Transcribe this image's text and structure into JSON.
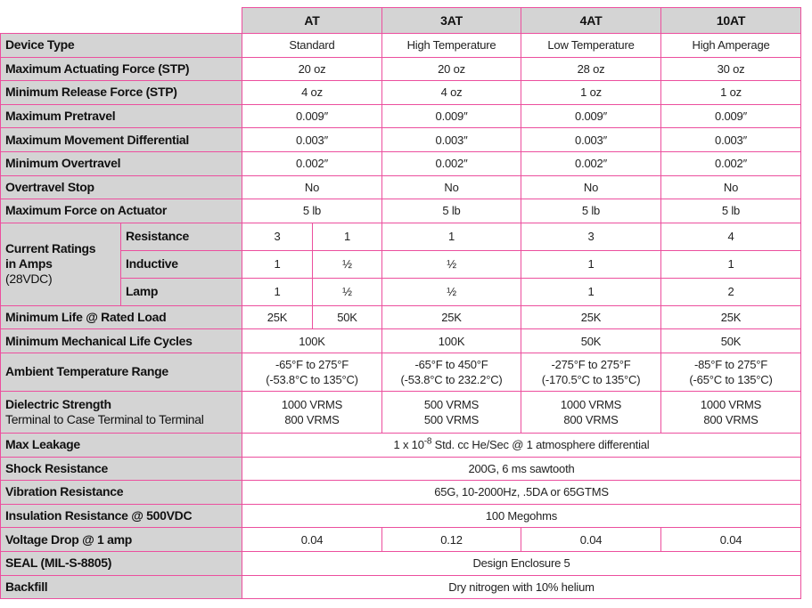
{
  "columns": [
    "AT",
    "3AT",
    "4AT",
    "10AT"
  ],
  "colors": {
    "border": "#ec4f9e",
    "label_bg": "#d4d4d4"
  },
  "rows": [
    {
      "label": "Device Type",
      "cells": [
        {
          "t": "Standard",
          "s": 2
        },
        {
          "t": "High Temperature"
        },
        {
          "t": "Low Temperature"
        },
        {
          "t": "High Amperage"
        }
      ]
    },
    {
      "label": "Maximum Actuating Force (STP)",
      "cells": [
        {
          "t": "20 oz",
          "s": 2
        },
        {
          "t": "20 oz"
        },
        {
          "t": "28 oz"
        },
        {
          "t": "30 oz"
        }
      ]
    },
    {
      "label": "Minimum Release Force (STP)",
      "cells": [
        {
          "t": "4 oz",
          "s": 2
        },
        {
          "t": "4 oz"
        },
        {
          "t": "1 oz"
        },
        {
          "t": "1 oz"
        }
      ]
    },
    {
      "label": "Maximum Pretravel",
      "cells": [
        {
          "t": "0.009″",
          "s": 2
        },
        {
          "t": "0.009″"
        },
        {
          "t": "0.009″"
        },
        {
          "t": "0.009″"
        }
      ]
    },
    {
      "label": "Maximum Movement Differential",
      "cells": [
        {
          "t": "0.003″",
          "s": 2
        },
        {
          "t": "0.003″"
        },
        {
          "t": "0.003″"
        },
        {
          "t": "0.003″"
        }
      ]
    },
    {
      "label": "Minimum Overtravel",
      "cells": [
        {
          "t": "0.002″",
          "s": 2
        },
        {
          "t": "0.002″"
        },
        {
          "t": "0.002″"
        },
        {
          "t": "0.002″"
        }
      ]
    },
    {
      "label": "Overtravel Stop",
      "cells": [
        {
          "t": "No",
          "s": 2
        },
        {
          "t": "No"
        },
        {
          "t": "No"
        },
        {
          "t": "No"
        }
      ]
    },
    {
      "label": "Maximum Force on Actuator",
      "cells": [
        {
          "t": "5 lb",
          "s": 2
        },
        {
          "t": "5 lb"
        },
        {
          "t": "5 lb"
        },
        {
          "t": "5 lb"
        }
      ]
    }
  ],
  "current_ratings": {
    "label": "Current Ratings",
    "label2": "in Amps",
    "note": "(28VDC)",
    "rows": [
      {
        "label": "Resistance",
        "cells": [
          "3",
          "1",
          "1",
          "3",
          "4"
        ]
      },
      {
        "label": "Inductive",
        "cells": [
          "1",
          "½",
          "½",
          "1",
          "1"
        ]
      },
      {
        "label": "Lamp",
        "cells": [
          "1",
          "½",
          "½",
          "1",
          "2"
        ]
      }
    ]
  },
  "rows2": [
    {
      "label": "Minimum Life @ Rated Load",
      "cells": [
        {
          "t": "25K"
        },
        {
          "t": "50K"
        },
        {
          "t": "25K"
        },
        {
          "t": "25K"
        },
        {
          "t": "25K"
        }
      ]
    },
    {
      "label": "Minimum Mechanical Life Cycles",
      "cells": [
        {
          "t": "100K",
          "s": 2
        },
        {
          "t": "100K"
        },
        {
          "t": "50K"
        },
        {
          "t": "50K"
        }
      ]
    },
    {
      "label": "Ambient Temperature Range",
      "h": "t",
      "cells": [
        {
          "t": "-65°F to 275°F",
          "t2": "(-53.8°C to 135°C)",
          "s": 2
        },
        {
          "t": "-65°F to 450°F",
          "t2": "(-53.8°C to 232.2°C)"
        },
        {
          "t": "-275°F to 275°F",
          "t2": "(-170.5°C to 135°C)"
        },
        {
          "t": "-85°F to 275°F",
          "t2": "(-65°C to 135°C)"
        }
      ]
    },
    {
      "label": "Dielectric Strength",
      "sublabel": "Terminal to Case Terminal to Terminal",
      "h": "d",
      "cells": [
        {
          "t": "1000 VRMS",
          "t2": "800 VRMS",
          "s": 2
        },
        {
          "t": "500 VRMS",
          "t2": "500 VRMS"
        },
        {
          "t": "1000 VRMS",
          "t2": "800 VRMS"
        },
        {
          "t": "1000 VRMS",
          "t2": "800 VRMS"
        }
      ]
    },
    {
      "label": "Max Leakage",
      "cells": [
        {
          "t": "1 x 10",
          "sup": "-8",
          "after": " Std. cc He/Sec @ 1 atmosphere differential",
          "s": 5
        }
      ]
    },
    {
      "label": "Shock Resistance",
      "cells": [
        {
          "t": "200G, 6 ms sawtooth",
          "s": 5
        }
      ]
    },
    {
      "label": "Vibration Resistance",
      "cells": [
        {
          "t": "65G, 10-2000Hz, .5DA or 65GTMS",
          "s": 5
        }
      ]
    },
    {
      "label": "Insulation Resistance @ 500VDC",
      "cells": [
        {
          "t": "100 Megohms",
          "s": 5
        }
      ]
    },
    {
      "label": "Voltage Drop @ 1 amp",
      "cells": [
        {
          "t": "0.04",
          "s": 2
        },
        {
          "t": "0.12"
        },
        {
          "t": "0.04"
        },
        {
          "t": "0.04"
        }
      ]
    },
    {
      "label": "SEAL (MIL-S-8805)",
      "cells": [
        {
          "t": "Design Enclosure 5",
          "s": 5
        }
      ]
    },
    {
      "label": "Backfill",
      "cells": [
        {
          "t": "Dry nitrogen with 10% helium",
          "s": 5
        }
      ]
    }
  ]
}
